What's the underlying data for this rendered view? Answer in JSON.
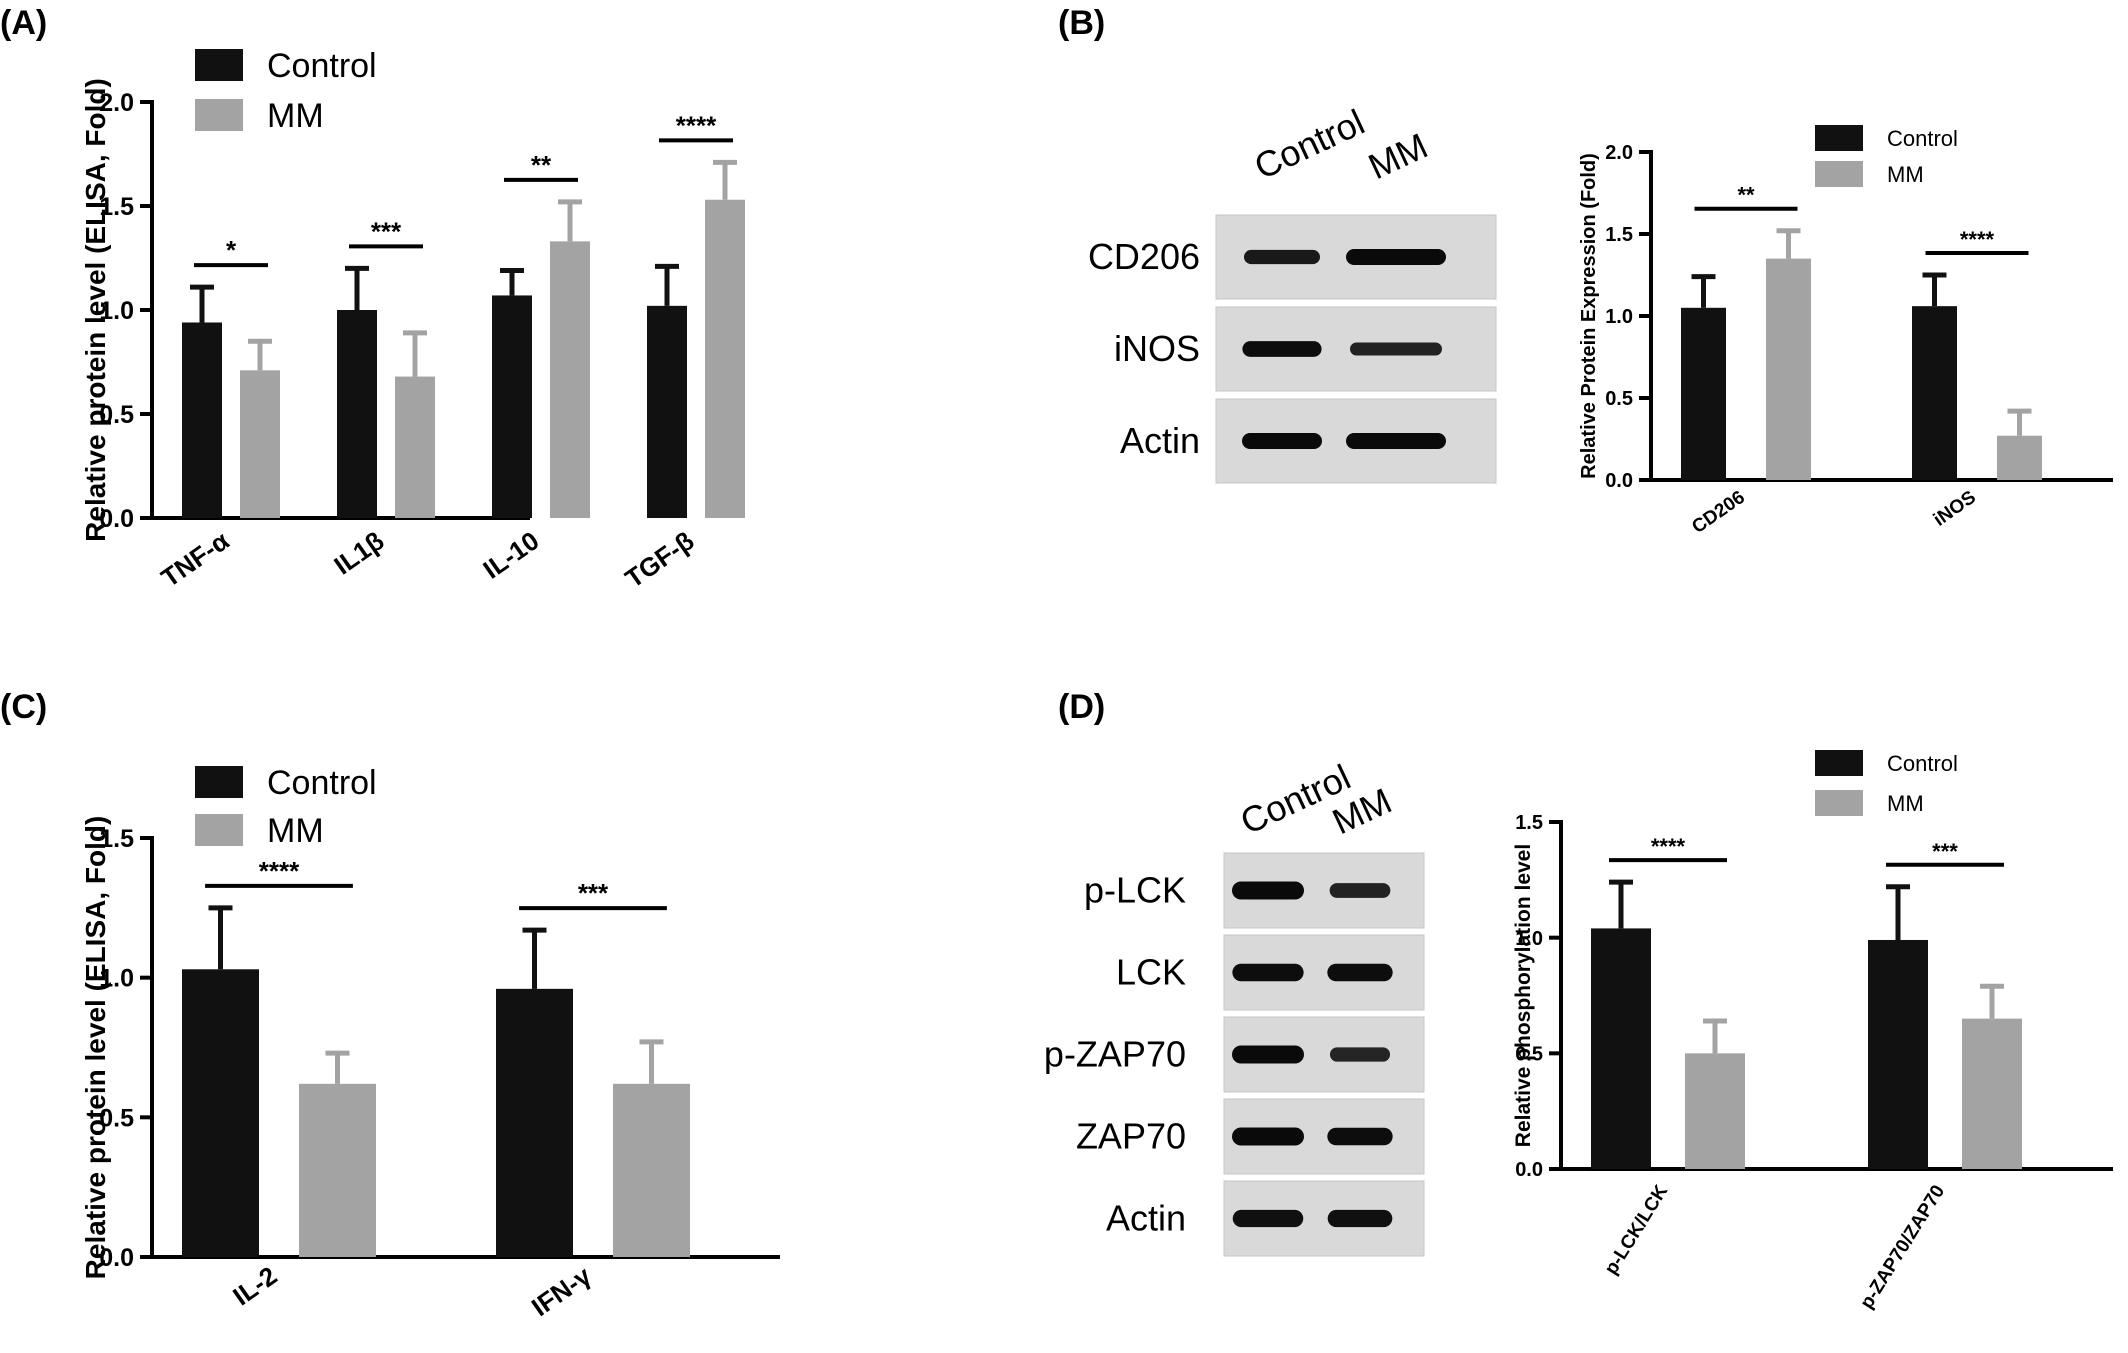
{
  "panel_labels": [
    "(A)",
    "(B)",
    "(C)",
    "(D)"
  ],
  "colors": {
    "control": "#111111",
    "mm": "#a3a3a3",
    "axis": "#000000"
  },
  "chart_data": [
    {
      "id": "A",
      "type": "bar",
      "ylabel": "Relative protein level (ELISA, Fold)",
      "ylim": [
        0,
        2.0
      ],
      "yticks": [
        0.0,
        0.5,
        1.0,
        1.5,
        2.0
      ],
      "ytick_labels": [
        "0.0",
        "0.5",
        "1.0",
        "1.5",
        "2.0"
      ],
      "categories": [
        "TNF-α",
        "IL1β",
        "IL-10",
        "TGF-β"
      ],
      "series": [
        {
          "name": "Control",
          "values": [
            0.94,
            1.0,
            1.07,
            1.02
          ],
          "errors": [
            0.17,
            0.2,
            0.12,
            0.19
          ]
        },
        {
          "name": "MM",
          "values": [
            0.71,
            0.68,
            1.33,
            1.53
          ],
          "errors": [
            0.14,
            0.21,
            0.19,
            0.18
          ]
        }
      ],
      "significance": [
        "*",
        "***",
        "**",
        "****"
      ],
      "legend": "top-left"
    },
    {
      "id": "B",
      "type": "bar",
      "ylabel": "Relative Protein Expression (Fold)",
      "ylim": [
        0,
        2.0
      ],
      "yticks": [
        0.0,
        0.5,
        1.0,
        1.5,
        2.0
      ],
      "ytick_labels": [
        "0.0",
        "0.5",
        "1.0",
        "1.5",
        "2.0"
      ],
      "categories": [
        "CD206",
        "iNOS"
      ],
      "series": [
        {
          "name": "Control",
          "values": [
            1.05,
            1.06
          ],
          "errors": [
            0.19,
            0.19
          ]
        },
        {
          "name": "MM",
          "values": [
            1.35,
            0.27
          ],
          "errors": [
            0.17,
            0.15
          ]
        }
      ],
      "significance": [
        "**",
        "****"
      ],
      "legend": "top-right"
    },
    {
      "id": "C",
      "type": "bar",
      "ylabel": "Relative protein level (ELISA, Fold)",
      "ylim": [
        0,
        1.5
      ],
      "yticks": [
        0.0,
        0.5,
        1.0,
        1.5
      ],
      "ytick_labels": [
        "0.0",
        "0.5",
        "1.0",
        "1.5"
      ],
      "categories": [
        "IL-2",
        "IFN-γ"
      ],
      "series": [
        {
          "name": "Control",
          "values": [
            1.03,
            0.96
          ],
          "errors": [
            0.22,
            0.21
          ]
        },
        {
          "name": "MM",
          "values": [
            0.62,
            0.62
          ],
          "errors": [
            0.11,
            0.15
          ]
        }
      ],
      "significance": [
        "****",
        "***"
      ],
      "legend": "top-left"
    },
    {
      "id": "D",
      "type": "bar",
      "ylabel": "Relative phosphorylation level",
      "ylim": [
        0,
        1.5
      ],
      "yticks": [
        0.0,
        0.5,
        1.0,
        1.5
      ],
      "ytick_labels": [
        "0.0",
        "0.5",
        "1.0",
        "1.5"
      ],
      "categories": [
        "p-LCK/LCK",
        "p-ZAP70/ZAP70"
      ],
      "series": [
        {
          "name": "Control",
          "values": [
            1.04,
            0.99
          ],
          "errors": [
            0.2,
            0.23
          ]
        },
        {
          "name": "MM",
          "values": [
            0.5,
            0.65
          ],
          "errors": [
            0.14,
            0.14
          ]
        }
      ],
      "significance": [
        "****",
        "***"
      ],
      "legend": "top-right"
    }
  ],
  "blots": [
    {
      "id": "B",
      "lanes": [
        "Control",
        "MM"
      ],
      "rows": [
        {
          "label": "CD206",
          "intensity": [
            0.75,
            1.0
          ]
        },
        {
          "label": "iNOS",
          "intensity": [
            0.95,
            0.6
          ]
        },
        {
          "label": "Actin",
          "intensity": [
            1.0,
            1.0
          ]
        }
      ]
    },
    {
      "id": "D",
      "lanes": [
        "Control",
        "MM"
      ],
      "rows": [
        {
          "label": "p-LCK",
          "intensity": [
            1.0,
            0.6
          ]
        },
        {
          "label": "LCK",
          "intensity": [
            0.95,
            0.95
          ]
        },
        {
          "label": "p-ZAP70",
          "intensity": [
            1.0,
            0.55
          ]
        },
        {
          "label": "ZAP70",
          "intensity": [
            1.0,
            0.95
          ]
        },
        {
          "label": "Actin",
          "intensity": [
            0.9,
            0.9
          ]
        }
      ]
    }
  ]
}
